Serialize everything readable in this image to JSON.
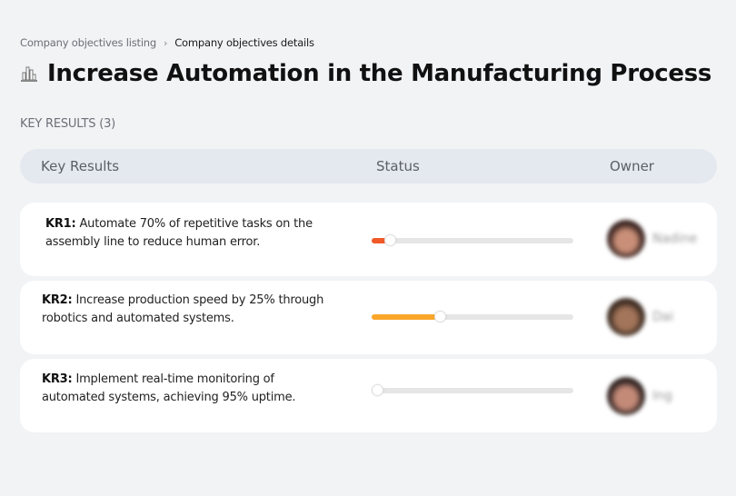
{
  "breadcrumb": {
    "items": [
      {
        "label": "Company objectives listing"
      },
      {
        "label": "Company objectives details"
      }
    ],
    "separator": "›"
  },
  "page": {
    "icon": "factory-icon",
    "title": "Increase Automation in the Manufacturing Process"
  },
  "key_results": {
    "section_label": "KEY RESULTS (3)",
    "columns": [
      "Key Results",
      "Status",
      "Owner"
    ],
    "rows": [
      {
        "id": "KR1:",
        "text": " Automate 70% of repetitive tasks on the assembly line to reduce human error.",
        "progress": 7,
        "progress_color": "#f05a28",
        "owner": "Nadine",
        "avatar_colors": [
          "#3a2420",
          "#c98f78"
        ]
      },
      {
        "id": "KR2:",
        "text": " Increase production speed by 25% through robotics and automated systems.",
        "progress": 32,
        "progress_color": "#f9a62b",
        "owner": "Dai",
        "avatar_colors": [
          "#3b2a20",
          "#a3755a"
        ]
      },
      {
        "id": "KR3:",
        "text": " Implement real-time monitoring of automated systems, achieving 95% uptime.",
        "progress": 1,
        "progress_color": "#f05a28",
        "owner": "Ing",
        "avatar_colors": [
          "#2f2220",
          "#c48a78"
        ]
      }
    ]
  }
}
